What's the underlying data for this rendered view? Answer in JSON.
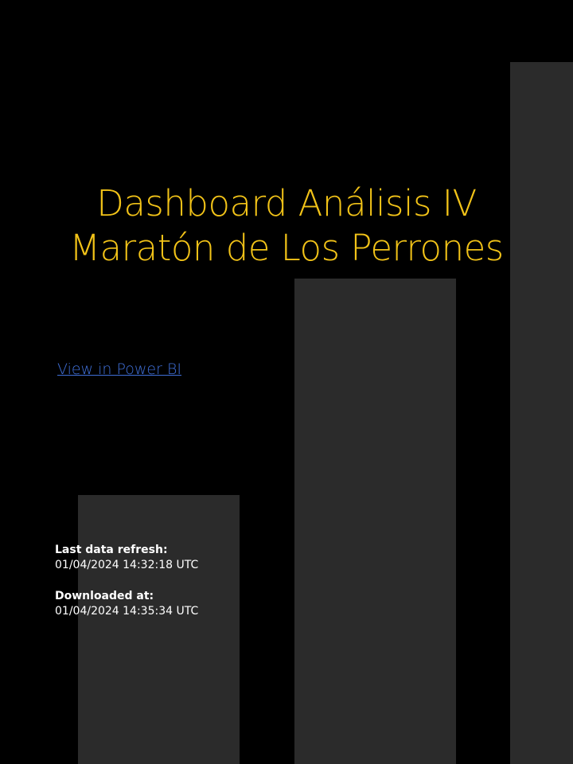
{
  "title": {
    "line1": "Dashboard Análisis IV",
    "line2": "Maratón de Los Perrones"
  },
  "link": {
    "label": "View in Power BI"
  },
  "refresh": {
    "label": "Last data refresh:",
    "value": "01/04/2024 14:32:18 UTC"
  },
  "download": {
    "label": "Downloaded at:",
    "value": "01/04/2024 14:35:34 UTC"
  },
  "colors": {
    "background": "#000000",
    "title": "#f2c318",
    "link": "#3f6fd8",
    "decorative_bars": "#2b2b2b"
  }
}
